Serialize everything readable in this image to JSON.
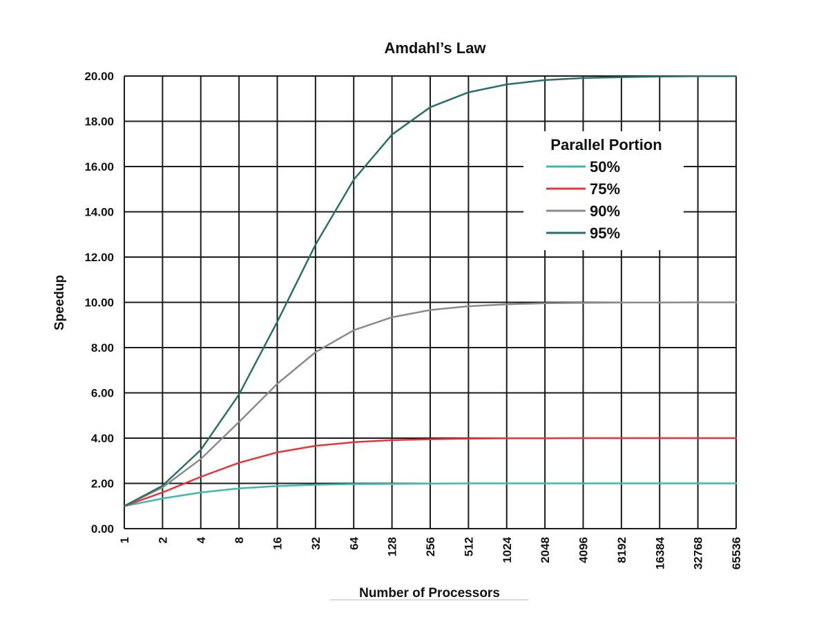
{
  "chart_data": {
    "type": "line",
    "title": "Amdahl’s Law",
    "xlabel": "Number of Processors",
    "ylabel": "Speedup",
    "x_scale": "log2",
    "categories": [
      "1",
      "2",
      "4",
      "8",
      "16",
      "32",
      "64",
      "128",
      "256",
      "512",
      "1024",
      "2048",
      "4096",
      "8192",
      "16384",
      "32768",
      "65536"
    ],
    "y_ticks": [
      "0.00",
      "2.00",
      "4.00",
      "6.00",
      "8.00",
      "10.00",
      "12.00",
      "14.00",
      "16.00",
      "18.00",
      "20.00"
    ],
    "ylim": [
      0,
      20
    ],
    "grid": true,
    "legend": {
      "title": "Parallel Portion",
      "position": "top-right"
    },
    "series": [
      {
        "name": "50%",
        "color": "#3fb8b0",
        "values": [
          1.0,
          1.33,
          1.6,
          1.78,
          1.88,
          1.94,
          1.97,
          1.98,
          1.99,
          2.0,
          2.0,
          2.0,
          2.0,
          2.0,
          2.0,
          2.0,
          2.0
        ]
      },
      {
        "name": "75%",
        "color": "#e8333a",
        "values": [
          1.0,
          1.6,
          2.29,
          2.91,
          3.37,
          3.66,
          3.82,
          3.91,
          3.95,
          3.98,
          3.99,
          3.99,
          4.0,
          4.0,
          4.0,
          4.0,
          4.0
        ]
      },
      {
        "name": "90%",
        "color": "#8a8a8a",
        "values": [
          1.0,
          1.82,
          3.08,
          4.71,
          6.4,
          7.8,
          8.77,
          9.34,
          9.66,
          9.83,
          9.91,
          9.96,
          9.98,
          9.99,
          9.99,
          10.0,
          10.0
        ]
      },
      {
        "name": "95%",
        "color": "#2a6e68",
        "values": [
          1.0,
          1.9,
          3.48,
          5.93,
          9.14,
          12.55,
          15.42,
          17.41,
          18.62,
          19.28,
          19.63,
          19.82,
          19.91,
          19.95,
          19.98,
          19.99,
          19.99
        ]
      }
    ]
  }
}
